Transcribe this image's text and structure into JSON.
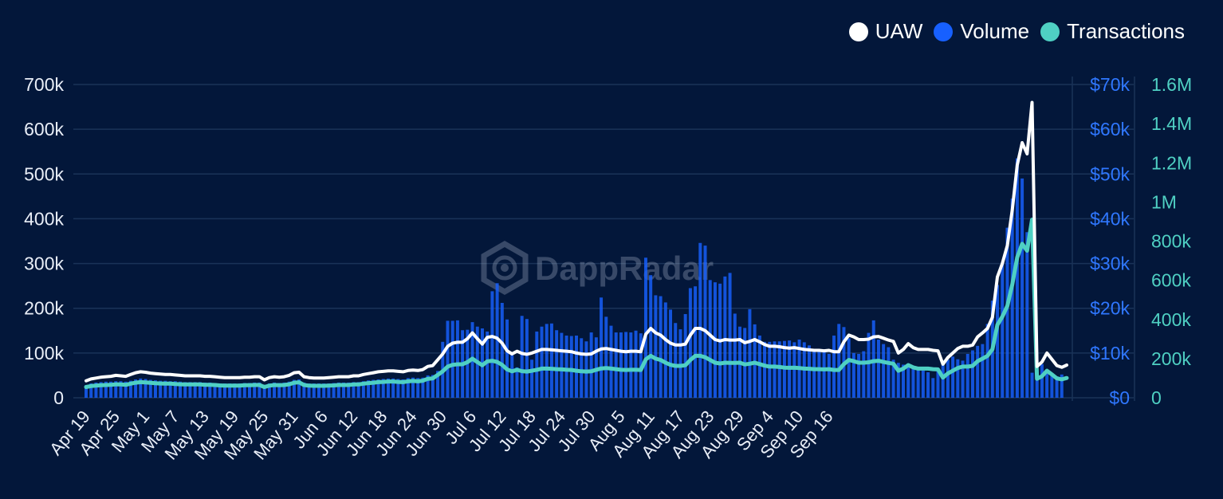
{
  "colors": {
    "background": "#03173a",
    "grid": "#1a3358",
    "uaw": "#ffffff",
    "volume": "#1760ff",
    "transactions": "#4fd0c3",
    "left_axis_text": "#e9eef7",
    "volume_axis_text": "#2f77ff",
    "tx_axis_text": "#4fd0c3"
  },
  "legend": [
    {
      "label": "UAW",
      "series": "uaw",
      "color": "#ffffff"
    },
    {
      "label": "Volume",
      "series": "volume",
      "color": "#1760ff"
    },
    {
      "label": "Transactions",
      "series": "transactions",
      "color": "#4fd0c3"
    }
  ],
  "watermark": {
    "text": "DappRadar",
    "icon": "dappradar-logo-icon"
  },
  "chart_data": {
    "type": "bar+line",
    "x_start": "2024-04-19",
    "x_end": "2024-09-17",
    "xticks": [
      "Apr 19",
      "Apr 25",
      "May 1",
      "May 7",
      "May 13",
      "May 19",
      "May 25",
      "May 31",
      "Jun 6",
      "Jun 12",
      "Jun 18",
      "Jun 24",
      "Jun 30",
      "Jul 6",
      "Jul 12",
      "Jul 18",
      "Jul 24",
      "Jul 30",
      "Aug 5",
      "Aug 11",
      "Aug 17",
      "Aug 23",
      "Aug 29",
      "Sep 4",
      "Sep 10",
      "Sep 16"
    ],
    "legend_position": "top-right",
    "grid": true,
    "axes": {
      "uaw": {
        "min": 0,
        "max": 700000,
        "ticks": [
          "0",
          "100k",
          "200k",
          "300k",
          "400k",
          "500k",
          "600k",
          "700k"
        ]
      },
      "volume": {
        "min": 0,
        "max": 70000,
        "ticks": [
          "$0",
          "$10k",
          "$20k",
          "$30k",
          "$40k",
          "$50k",
          "$60k",
          "$70k"
        ]
      },
      "transactions": {
        "min": 0,
        "max": 1600000,
        "ticks": [
          "0",
          "200k",
          "400k",
          "800k",
          "600k",
          "1M",
          "1.2M",
          "1.4M",
          "1.6M"
        ],
        "ticks_ordered": [
          "0",
          "200k",
          "400k",
          "600k",
          "800k",
          "1M",
          "1.2M",
          "1.4M",
          "1.6M"
        ]
      }
    },
    "series": [
      {
        "name": "UAW",
        "kind": "line",
        "axis": "uaw",
        "values": [
          38000,
          42000,
          44000,
          46000,
          47000,
          48000,
          50000,
          49000,
          48000,
          52000,
          56000,
          58000,
          57000,
          55000,
          54000,
          53000,
          52000,
          52000,
          51000,
          50000,
          49000,
          49000,
          49000,
          49000,
          48000,
          48000,
          47000,
          46000,
          45000,
          45000,
          45000,
          45000,
          46000,
          46000,
          47000,
          47000,
          40000,
          45000,
          47000,
          46000,
          47000,
          50000,
          56000,
          57000,
          47000,
          45000,
          44000,
          44000,
          44000,
          45000,
          46000,
          47000,
          47000,
          47000,
          49000,
          49000,
          52000,
          54000,
          56000,
          58000,
          59000,
          60000,
          60000,
          59000,
          58000,
          61000,
          62000,
          61000,
          63000,
          70000,
          72000,
          85000,
          98000,
          115000,
          122000,
          124000,
          124000,
          132000,
          145000,
          132000,
          120000,
          135000,
          137000,
          133000,
          122000,
          105000,
          98000,
          104000,
          99000,
          97000,
          100000,
          104000,
          108000,
          108000,
          107000,
          106000,
          105000,
          104000,
          103000,
          100000,
          98000,
          97000,
          98000,
          104000,
          109000,
          110000,
          108000,
          106000,
          104000,
          103000,
          104000,
          104000,
          103000,
          142000,
          155000,
          145000,
          140000,
          130000,
          122000,
          118000,
          118000,
          120000,
          140000,
          155000,
          155000,
          150000,
          140000,
          130000,
          127000,
          130000,
          129000,
          129000,
          130000,
          123000,
          126000,
          130000,
          125000,
          119000,
          115000,
          115000,
          114000,
          112000,
          111000,
          112000,
          110000,
          108000,
          107000,
          106000,
          106000,
          105000,
          106000,
          103000,
          103000,
          125000,
          140000,
          136000,
          130000,
          130000,
          131000,
          136000,
          137000,
          133000,
          129000,
          126000,
          100000,
          108000,
          121000,
          112000,
          108000,
          108000,
          108000,
          106000,
          105000,
          75000,
          90000,
          100000,
          110000,
          115000,
          115000,
          118000,
          136000,
          145000,
          155000,
          180000,
          270000,
          300000,
          340000,
          420000,
          520000,
          570000,
          545000,
          660000,
          70000,
          80000,
          100000,
          86000,
          72000,
          68000,
          73000
        ]
      },
      {
        "name": "Transactions",
        "kind": "line",
        "axis": "transactions",
        "values": [
          55000,
          60000,
          62000,
          64000,
          65000,
          66000,
          69000,
          68000,
          66000,
          72000,
          77000,
          80000,
          78000,
          76000,
          74000,
          73000,
          72000,
          72000,
          70000,
          69000,
          68000,
          68000,
          68000,
          68000,
          66000,
          66000,
          65000,
          63000,
          62000,
          62000,
          62000,
          62000,
          64000,
          64000,
          65000,
          65000,
          55000,
          62000,
          65000,
          64000,
          65000,
          69000,
          77000,
          79000,
          65000,
          62000,
          61000,
          61000,
          61000,
          62000,
          63000,
          65000,
          65000,
          65000,
          68000,
          68000,
          72000,
          75000,
          77000,
          80000,
          81000,
          83000,
          83000,
          81000,
          80000,
          84000,
          86000,
          84000,
          87000,
          97000,
          99000,
          117000,
          135000,
          159000,
          168000,
          171000,
          171000,
          182000,
          200000,
          182000,
          166000,
          186000,
          189000,
          183000,
          168000,
          145000,
          135000,
          143000,
          136000,
          134000,
          138000,
          143000,
          149000,
          149000,
          148000,
          146000,
          145000,
          143000,
          142000,
          138000,
          135000,
          134000,
          135000,
          143000,
          150000,
          152000,
          149000,
          146000,
          143000,
          142000,
          143000,
          143000,
          142000,
          196000,
          214000,
          200000,
          193000,
          179000,
          168000,
          163000,
          163000,
          166000,
          193000,
          214000,
          214000,
          207000,
          193000,
          179000,
          175000,
          179000,
          178000,
          178000,
          179000,
          170000,
          174000,
          179000,
          172000,
          164000,
          159000,
          159000,
          157000,
          154000,
          153000,
          154000,
          152000,
          149000,
          148000,
          146000,
          146000,
          145000,
          146000,
          142000,
          142000,
          172000,
          193000,
          187000,
          179000,
          179000,
          181000,
          187000,
          189000,
          183000,
          178000,
          174000,
          138000,
          149000,
          167000,
          155000,
          149000,
          149000,
          149000,
          146000,
          145000,
          103000,
          124000,
          138000,
          152000,
          159000,
          159000,
          163000,
          187000,
          200000,
          214000,
          248000,
          372000,
          414000,
          469000,
          579000,
          717000,
          786000,
          751000,
          910000,
          97000,
          110000,
          138000,
          119000,
          99000,
          94000,
          101000
        ]
      },
      {
        "name": "Volume",
        "kind": "bar",
        "axis": "volume",
        "values": [
          2800,
          3200,
          3400,
          3500,
          3600,
          3600,
          3700,
          3700,
          3600,
          3800,
          4100,
          4300,
          4200,
          4000,
          3900,
          3800,
          3800,
          3700,
          3700,
          3600,
          3500,
          3500,
          3500,
          3500,
          3400,
          3400,
          3300,
          3200,
          3200,
          3200,
          3200,
          3200,
          3300,
          3300,
          3400,
          3400,
          2900,
          3200,
          3400,
          3300,
          3400,
          3600,
          4000,
          4100,
          3400,
          3200,
          3200,
          3200,
          3200,
          3200,
          3300,
          3400,
          3400,
          3400,
          3500,
          3500,
          3700,
          3900,
          4000,
          4100,
          4200,
          4300,
          4300,
          4200,
          4100,
          4400,
          4500,
          4400,
          4500,
          5000,
          5100,
          6000,
          12500,
          17200,
          17200,
          17300,
          15100,
          15200,
          16900,
          15900,
          15500,
          14800,
          23800,
          25600,
          21200,
          17500,
          9500,
          6800,
          18300,
          17600,
          8500,
          14800,
          15900,
          16500,
          16600,
          15100,
          14500,
          13900,
          13800,
          13900,
          13300,
          12600,
          14600,
          13500,
          22400,
          18100,
          16100,
          14600,
          14600,
          14700,
          14600,
          15000,
          14400,
          31300,
          27400,
          22900,
          22700,
          21300,
          19700,
          16700,
          15300,
          18700,
          24500,
          24900,
          34600,
          34000,
          26300,
          25800,
          25500,
          27100,
          27900,
          18800,
          15900,
          15600,
          19800,
          16400,
          13900,
          12500,
          12500,
          12600,
          12600,
          12700,
          12800,
          12400,
          13000,
          12400,
          11700,
          10500,
          10600,
          10400,
          9800,
          13900,
          16500,
          15800,
          13300,
          10000,
          9800,
          10400,
          14500,
          17300,
          13000,
          12000,
          11300,
          8500,
          7800,
          7400,
          7000,
          6600,
          6300,
          6100,
          5700,
          4400,
          6000,
          7500,
          8500,
          9200,
          8600,
          8300,
          9800,
          10600,
          11600,
          12000,
          16500,
          21700,
          25200,
          30000,
          38000,
          44500,
          53500,
          49000,
          37000,
          5600,
          6200,
          7500,
          6000,
          5000,
          4800,
          5200
        ]
      }
    ]
  }
}
